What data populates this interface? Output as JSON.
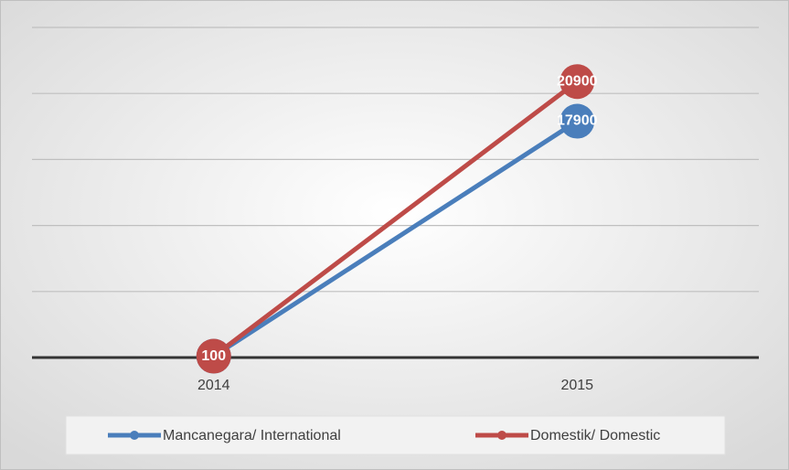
{
  "chart_data": {
    "type": "line",
    "categories": [
      "2014",
      "2015"
    ],
    "series": [
      {
        "name": "Mancanegara/ International",
        "color": "#4a7ebb",
        "values": [
          100,
          17900
        ]
      },
      {
        "name": "Domestik/ Domestic",
        "color": "#be4b48",
        "values": [
          100,
          20900
        ]
      }
    ],
    "ylim": [
      0,
      25000
    ],
    "yticks": [
      0,
      5000,
      10000,
      15000,
      20000,
      25000
    ],
    "grid": true,
    "legend": "bottom"
  }
}
